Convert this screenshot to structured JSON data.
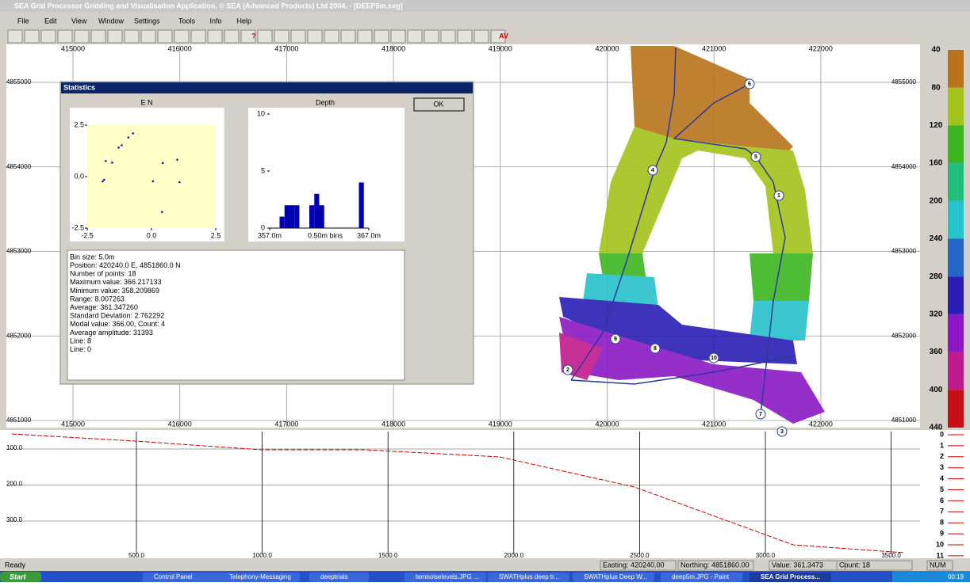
{
  "window": {
    "title": "SEA Grid Processor Gridding and Visualisation Application.  © SEA (Advanced Products) Ltd 2004. - [DEEP5m.sxg]"
  },
  "menu": [
    "File",
    "Edit",
    "View",
    "Window",
    "Settings",
    "Tools",
    "Info",
    "Help"
  ],
  "toolbar_text": [
    "?",
    "AV"
  ],
  "map": {
    "xticks": [
      415000,
      416000,
      417000,
      418000,
      419000,
      420000,
      421000,
      422000
    ],
    "yticks": [
      4851000,
      4852000,
      4853000,
      4854000,
      4855000
    ],
    "waypoints": [
      "6",
      "5",
      "4",
      "1",
      "2",
      "7",
      "3",
      "9",
      "8",
      "10"
    ]
  },
  "color_scale": {
    "ticks": [
      40,
      80,
      120,
      160,
      200,
      240,
      280,
      320,
      360,
      400,
      440
    ],
    "colors": [
      "#b8731b",
      "#a4c31a",
      "#3cb521",
      "#1fbe7d",
      "#27c2cc",
      "#2567c9",
      "#2a1fb4",
      "#8b18c4",
      "#c21a8c",
      "#c80f18"
    ]
  },
  "profile": {
    "yticks": [
      {
        "value": 100,
        "label": "100.0"
      },
      {
        "value": 200,
        "label": "200.0"
      },
      {
        "value": 300,
        "label": "300.0"
      }
    ],
    "xticks": [
      {
        "value": 500,
        "label": "500.0"
      },
      {
        "value": 1000,
        "label": "1000.0"
      },
      {
        "value": 1500,
        "label": "1500.0"
      },
      {
        "value": 2000,
        "label": "2000.0"
      },
      {
        "value": 2500,
        "label": "2500.0"
      },
      {
        "value": 3000,
        "label": "3000.0"
      },
      {
        "value": 3500,
        "label": "3500.0"
      }
    ],
    "lines": [
      0,
      1,
      2,
      3,
      4,
      5,
      6,
      7,
      8,
      9,
      10,
      11
    ]
  },
  "dialog": {
    "title": "Statistics",
    "ok": "OK",
    "en_chart": {
      "type": "scatter",
      "title": "E N",
      "color": "#1a1aa0",
      "x": [
        -1.28,
        -1.16,
        -0.72,
        -0.9,
        -1.78,
        -1.53,
        -1.9,
        -1.84,
        0.44,
        1.0,
        0.06,
        1.09,
        0.41
      ],
      "y": [
        1.41,
        1.52,
        2.1,
        1.9,
        0.76,
        0.68,
        -0.23,
        -0.15,
        0.66,
        0.82,
        -0.23,
        -0.27,
        -1.72
      ],
      "xlim": [
        -2.5,
        2.5
      ],
      "ylim": [
        -2.5,
        2.5
      ],
      "xticks": [
        {
          "value": -2.5,
          "label": "-2.5"
        },
        {
          "value": 0,
          "label": "0.0"
        },
        {
          "value": 2.5,
          "label": "2.5"
        }
      ],
      "yticks": [
        {
          "value": 2.5,
          "label": "2.5"
        },
        {
          "value": 0,
          "label": "0.0"
        },
        {
          "value": -2.5,
          "label": "-2.5"
        }
      ]
    },
    "depth_chart": {
      "type": "histogram",
      "title": "Depth",
      "xlabel": "0.50m bins",
      "color": "#0000b0",
      "bins": [
        357,
        357.5,
        358,
        358.5,
        359,
        359.5,
        360,
        360.5,
        361,
        361.5,
        362,
        362.5,
        363,
        363.5,
        364,
        364.5,
        365,
        365.5,
        366,
        366.5,
        367
      ],
      "counts": [
        0,
        0,
        1,
        2,
        2,
        2,
        0,
        0,
        2,
        3,
        2,
        0,
        0,
        0,
        0,
        0,
        0,
        0,
        4,
        0
      ],
      "xlim": [
        357,
        367
      ],
      "ylim": [
        0,
        10
      ],
      "xticks": [
        {
          "value": 357,
          "label": "357.0m"
        },
        {
          "value": 367,
          "label": "367.0m"
        }
      ],
      "yticks": [
        0,
        5,
        10
      ]
    },
    "stats": [
      "Bin size: 5.0m",
      "Position: 420240.0 E, 4851860.0 N",
      "Number of points: 18",
      "Maximum value: 366.217133",
      "Minimum value: 358.209869",
      "Range: 8.007263",
      "Average: 361.347260",
      "Standard Deviation: 2.762292",
      "Modal value: 366.00,  Count: 4",
      "Average amplitude: 31393",
      "Line: 8",
      "Line: 0"
    ]
  },
  "status": {
    "ready": "Ready",
    "easting": "Easting: 420240.00",
    "northing": "Northing: 4851860.00",
    "value": "Value: 361.3473",
    "count": "Count: 18",
    "num": "NUM"
  },
  "taskbar": {
    "start": "Start",
    "items": [
      "Control Panel",
      "Telephony-Messaging",
      "deeptrials",
      "temnoiselevels.JPG ...",
      "SWATHplus deep tr...",
      "SWATHplus Deep W...",
      "deep5m.JPG - Paint",
      "SEA Grid Process..."
    ],
    "clock": "00:19"
  }
}
